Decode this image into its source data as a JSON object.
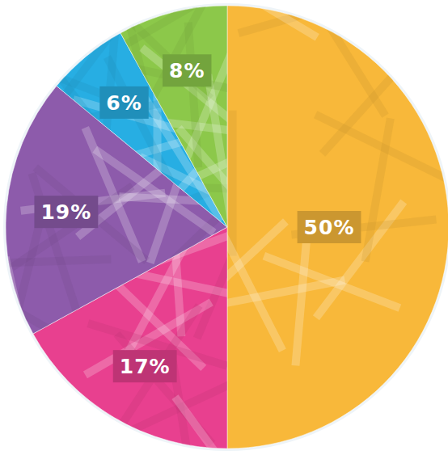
{
  "chart_data": {
    "type": "pie",
    "values": [
      50,
      17,
      19,
      6,
      8
    ],
    "value_labels": [
      "50%",
      "17%",
      "19%",
      "6%",
      "8%"
    ],
    "colors": [
      "#f8b83a",
      "#e8408f",
      "#8d5bab",
      "#27aee3",
      "#8cc84a"
    ],
    "data_labels": true
  }
}
